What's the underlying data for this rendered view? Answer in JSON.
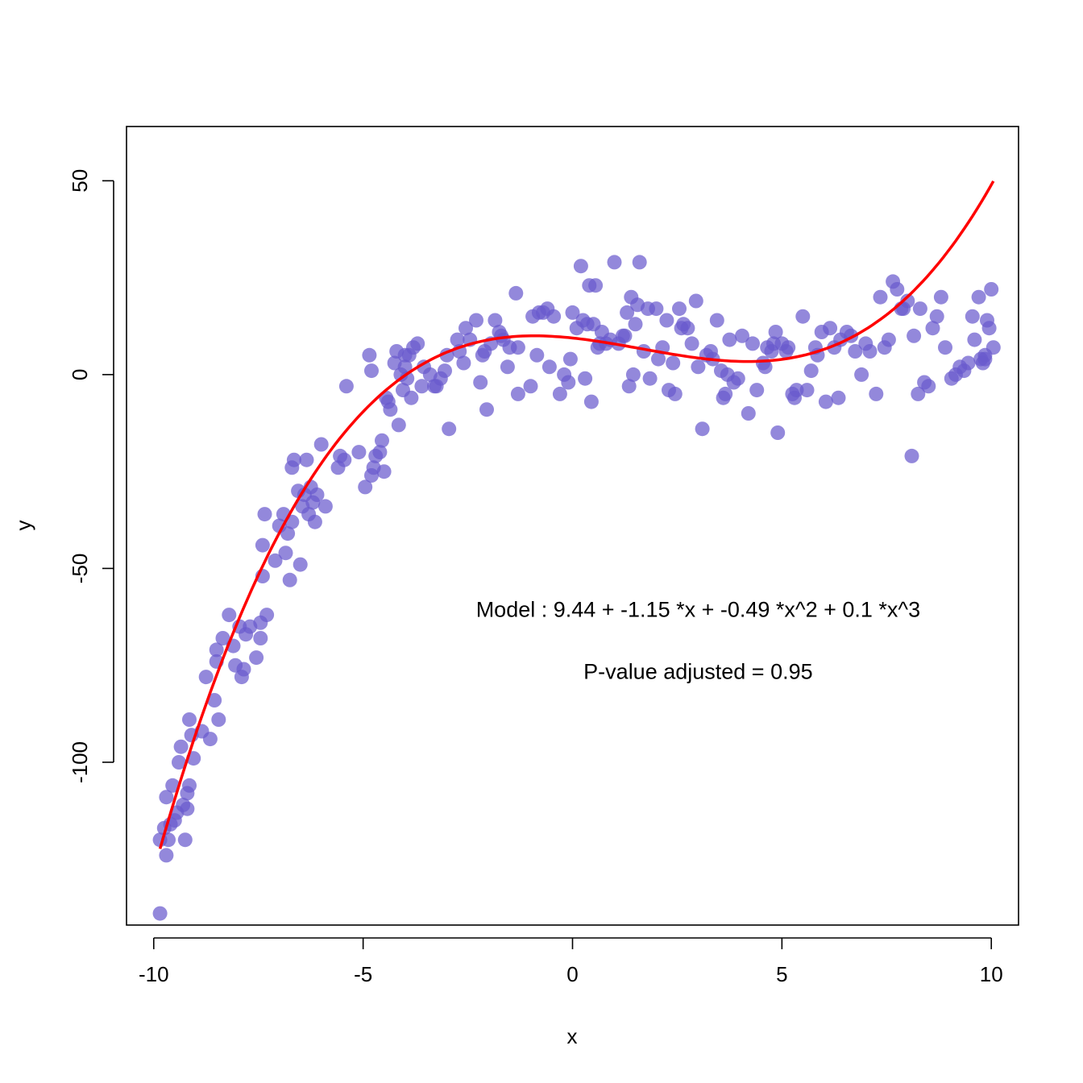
{
  "chart_data": {
    "type": "scatter",
    "xlabel": "x",
    "ylabel": "y",
    "xlim": [
      -10.65,
      10.65
    ],
    "ylim": [
      -142,
      64
    ],
    "x_ticks": [
      -10,
      -5,
      0,
      5,
      10
    ],
    "y_ticks": [
      -100,
      -50,
      0,
      50
    ],
    "x_tick_labels": [
      "-10",
      "-5",
      "0",
      "5",
      "10"
    ],
    "y_tick_labels": [
      "-100",
      "-50",
      "0",
      "50"
    ],
    "grid": false,
    "point_color": "#6a5acd",
    "point_opacity": 0.72,
    "curve_color": "#ff0000",
    "annotations": [
      {
        "text": "Model :  9.44  +  -1.15 *x + -0.49 *x^2 + 0.1 *x^3",
        "x": 3,
        "y": -62.5
      },
      {
        "text": "P-value adjusted =  0.95",
        "x": 3,
        "y": -78.5
      }
    ],
    "model": {
      "intercept": 9.44,
      "b1": -1.15,
      "b2": -0.49,
      "b3": 0.1
    },
    "points": [
      [
        -9.85,
        -139
      ],
      [
        -9.85,
        -120
      ],
      [
        -9.75,
        -117
      ],
      [
        -9.7,
        -124
      ],
      [
        -9.7,
        -109
      ],
      [
        -9.65,
        -120
      ],
      [
        -9.6,
        -116
      ],
      [
        -9.55,
        -106
      ],
      [
        -9.5,
        -115
      ],
      [
        -9.45,
        -113
      ],
      [
        -9.4,
        -100
      ],
      [
        -9.35,
        -96
      ],
      [
        -9.3,
        -111
      ],
      [
        -9.25,
        -120
      ],
      [
        -9.2,
        -108
      ],
      [
        -9.2,
        -112
      ],
      [
        -9.15,
        -106
      ],
      [
        -9.15,
        -89
      ],
      [
        -9.1,
        -93
      ],
      [
        -9.05,
        -99
      ],
      [
        -8.85,
        -92
      ],
      [
        -8.75,
        -78
      ],
      [
        -8.65,
        -94
      ],
      [
        -8.55,
        -84
      ],
      [
        -8.5,
        -74
      ],
      [
        -8.5,
        -71
      ],
      [
        -8.45,
        -89
      ],
      [
        -8.35,
        -68
      ],
      [
        -8.2,
        -62
      ],
      [
        -8.1,
        -70
      ],
      [
        -8.05,
        -75
      ],
      [
        -7.95,
        -65
      ],
      [
        -7.9,
        -78
      ],
      [
        -7.85,
        -76
      ],
      [
        -7.8,
        -67
      ],
      [
        -7.7,
        -65
      ],
      [
        -7.55,
        -73
      ],
      [
        -7.45,
        -64
      ],
      [
        -7.45,
        -68
      ],
      [
        -7.4,
        -52
      ],
      [
        -7.4,
        -44
      ],
      [
        -7.35,
        -36
      ],
      [
        -7.3,
        -62
      ],
      [
        -7.1,
        -48
      ],
      [
        -7.0,
        -39
      ],
      [
        -6.9,
        -36
      ],
      [
        -6.85,
        -46
      ],
      [
        -6.8,
        -41
      ],
      [
        -6.75,
        -53
      ],
      [
        -6.7,
        -38
      ],
      [
        -6.7,
        -24
      ],
      [
        -6.65,
        -22
      ],
      [
        -6.55,
        -30
      ],
      [
        -6.5,
        -49
      ],
      [
        -6.45,
        -34
      ],
      [
        -6.4,
        -31
      ],
      [
        -6.35,
        -22
      ],
      [
        -6.3,
        -36
      ],
      [
        -6.25,
        -29
      ],
      [
        -6.2,
        -33
      ],
      [
        -6.15,
        -38
      ],
      [
        -6.1,
        -31
      ],
      [
        -6.0,
        -18
      ],
      [
        -5.9,
        -34
      ],
      [
        -5.6,
        -24
      ],
      [
        -5.55,
        -21
      ],
      [
        -5.45,
        -22
      ],
      [
        -5.4,
        -3
      ],
      [
        -5.1,
        -20
      ],
      [
        -4.95,
        -29
      ],
      [
        -4.85,
        5
      ],
      [
        -4.8,
        1
      ],
      [
        -4.8,
        -26
      ],
      [
        -4.75,
        -24
      ],
      [
        -4.7,
        -21
      ],
      [
        -4.6,
        -20
      ],
      [
        -4.55,
        -17
      ],
      [
        -4.5,
        -25
      ],
      [
        -4.45,
        -6
      ],
      [
        -4.4,
        -7
      ],
      [
        -4.35,
        -9
      ],
      [
        -4.25,
        3
      ],
      [
        -4.2,
        6
      ],
      [
        -4.15,
        -13
      ],
      [
        -4.1,
        0
      ],
      [
        -4.05,
        -4
      ],
      [
        -4.0,
        2
      ],
      [
        -4.0,
        5
      ],
      [
        -3.95,
        -1
      ],
      [
        -3.9,
        5
      ],
      [
        -3.85,
        -6
      ],
      [
        -3.8,
        7
      ],
      [
        -3.7,
        8
      ],
      [
        -3.6,
        -3
      ],
      [
        -3.55,
        2
      ],
      [
        -3.4,
        0
      ],
      [
        -3.3,
        -3
      ],
      [
        -3.25,
        -3
      ],
      [
        -3.15,
        -1
      ],
      [
        -3.05,
        1
      ],
      [
        -3.0,
        5
      ],
      [
        -2.95,
        -14
      ],
      [
        -2.75,
        9
      ],
      [
        -2.7,
        6
      ],
      [
        -2.6,
        3
      ],
      [
        -2.55,
        12
      ],
      [
        -2.45,
        9
      ],
      [
        -2.3,
        14
      ],
      [
        -2.2,
        -2
      ],
      [
        -2.15,
        5
      ],
      [
        -2.1,
        6
      ],
      [
        -2.05,
        -9
      ],
      [
        -1.95,
        8
      ],
      [
        -1.85,
        14
      ],
      [
        -1.75,
        11
      ],
      [
        -1.7,
        10
      ],
      [
        -1.65,
        9
      ],
      [
        -1.55,
        2
      ],
      [
        -1.5,
        7
      ],
      [
        -1.35,
        21
      ],
      [
        -1.3,
        -5
      ],
      [
        -1.3,
        7
      ],
      [
        -1.0,
        -3
      ],
      [
        -0.95,
        15
      ],
      [
        -0.85,
        5
      ],
      [
        -0.8,
        16
      ],
      [
        -0.7,
        16
      ],
      [
        -0.6,
        17
      ],
      [
        -0.55,
        2
      ],
      [
        -0.45,
        15
      ],
      [
        -0.3,
        -5
      ],
      [
        -0.2,
        0
      ],
      [
        -0.1,
        -2
      ],
      [
        -0.05,
        4
      ],
      [
        0.0,
        16
      ],
      [
        0.1,
        12
      ],
      [
        0.2,
        28
      ],
      [
        0.25,
        14
      ],
      [
        0.3,
        -1
      ],
      [
        0.35,
        13
      ],
      [
        0.4,
        23
      ],
      [
        0.45,
        -7
      ],
      [
        0.5,
        13
      ],
      [
        0.55,
        23
      ],
      [
        0.6,
        7
      ],
      [
        0.65,
        8
      ],
      [
        0.7,
        11
      ],
      [
        0.8,
        8
      ],
      [
        0.9,
        9
      ],
      [
        1.0,
        29
      ],
      [
        1.1,
        8
      ],
      [
        1.2,
        10
      ],
      [
        1.25,
        10
      ],
      [
        1.3,
        16
      ],
      [
        1.35,
        -3
      ],
      [
        1.4,
        20
      ],
      [
        1.45,
        0
      ],
      [
        1.5,
        13
      ],
      [
        1.55,
        18
      ],
      [
        1.6,
        29
      ],
      [
        1.7,
        6
      ],
      [
        1.8,
        17
      ],
      [
        1.85,
        -1
      ],
      [
        2.0,
        17
      ],
      [
        2.05,
        4
      ],
      [
        2.15,
        7
      ],
      [
        2.25,
        14
      ],
      [
        2.3,
        -4
      ],
      [
        2.4,
        3
      ],
      [
        2.45,
        -5
      ],
      [
        2.55,
        17
      ],
      [
        2.6,
        12
      ],
      [
        2.65,
        13
      ],
      [
        2.75,
        12
      ],
      [
        2.85,
        8
      ],
      [
        2.95,
        19
      ],
      [
        3.0,
        2
      ],
      [
        3.1,
        -14
      ],
      [
        3.2,
        5
      ],
      [
        3.3,
        6
      ],
      [
        3.35,
        4
      ],
      [
        3.45,
        14
      ],
      [
        3.55,
        1
      ],
      [
        3.6,
        -6
      ],
      [
        3.65,
        -5
      ],
      [
        3.7,
        0
      ],
      [
        3.75,
        9
      ],
      [
        3.85,
        -2
      ],
      [
        3.95,
        -1
      ],
      [
        4.05,
        10
      ],
      [
        4.2,
        -10
      ],
      [
        4.3,
        8
      ],
      [
        4.4,
        -4
      ],
      [
        4.55,
        3
      ],
      [
        4.6,
        2
      ],
      [
        4.65,
        7
      ],
      [
        4.75,
        6
      ],
      [
        4.8,
        8
      ],
      [
        4.85,
        11
      ],
      [
        4.9,
        -15
      ],
      [
        5.0,
        8
      ],
      [
        5.1,
        6
      ],
      [
        5.15,
        7
      ],
      [
        5.25,
        -5
      ],
      [
        5.3,
        -6
      ],
      [
        5.35,
        -4
      ],
      [
        5.5,
        15
      ],
      [
        5.6,
        -4
      ],
      [
        5.7,
        1
      ],
      [
        5.8,
        7
      ],
      [
        5.85,
        5
      ],
      [
        5.95,
        11
      ],
      [
        6.05,
        -7
      ],
      [
        6.15,
        12
      ],
      [
        6.25,
        7
      ],
      [
        6.35,
        -6
      ],
      [
        6.4,
        9
      ],
      [
        6.55,
        11
      ],
      [
        6.65,
        10
      ],
      [
        6.75,
        6
      ],
      [
        6.9,
        0
      ],
      [
        7.0,
        8
      ],
      [
        7.1,
        6
      ],
      [
        7.25,
        -5
      ],
      [
        7.35,
        20
      ],
      [
        7.45,
        7
      ],
      [
        7.55,
        9
      ],
      [
        7.65,
        24
      ],
      [
        7.75,
        22
      ],
      [
        7.85,
        17
      ],
      [
        7.9,
        17
      ],
      [
        8.0,
        19
      ],
      [
        8.1,
        -21
      ],
      [
        8.15,
        10
      ],
      [
        8.25,
        -5
      ],
      [
        8.3,
        17
      ],
      [
        8.4,
        -2
      ],
      [
        8.5,
        -3
      ],
      [
        8.6,
        12
      ],
      [
        8.7,
        15
      ],
      [
        8.8,
        20
      ],
      [
        8.9,
        7
      ],
      [
        9.05,
        -1
      ],
      [
        9.15,
        0
      ],
      [
        9.25,
        2
      ],
      [
        9.35,
        1
      ],
      [
        9.45,
        3
      ],
      [
        9.55,
        15
      ],
      [
        9.6,
        9
      ],
      [
        9.7,
        20
      ],
      [
        9.75,
        4
      ],
      [
        9.8,
        3
      ],
      [
        9.85,
        5
      ],
      [
        9.85,
        4
      ],
      [
        9.9,
        14
      ],
      [
        9.95,
        12
      ],
      [
        10.0,
        22
      ],
      [
        10.05,
        7
      ]
    ]
  }
}
